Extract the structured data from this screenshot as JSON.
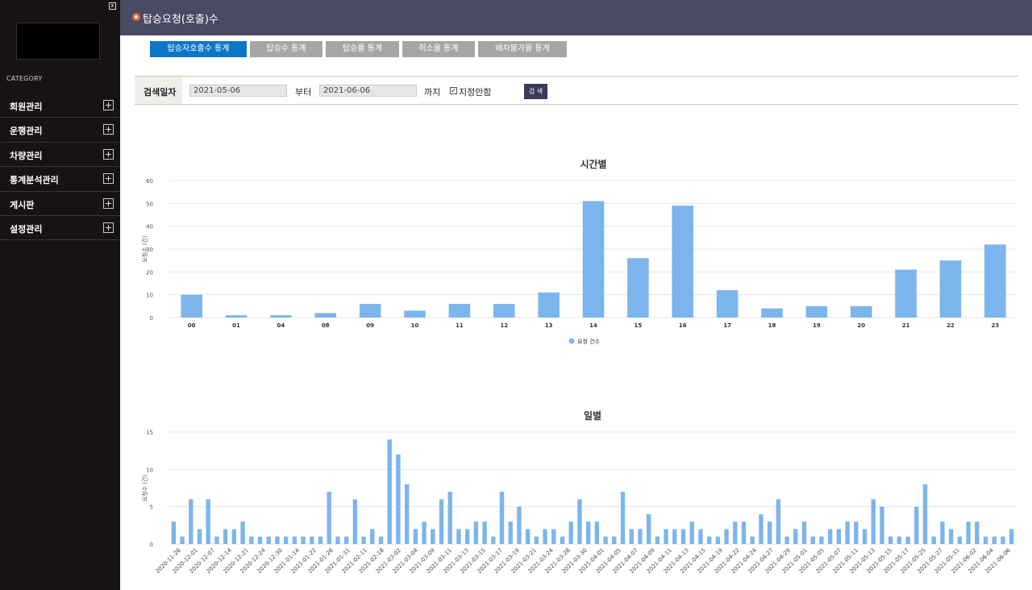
{
  "sidebar": {
    "category": "CATEGORY",
    "items": [
      {
        "label": "회원관리"
      },
      {
        "label": "운행관리"
      },
      {
        "label": "차량관리"
      },
      {
        "label": "통계분석관리"
      },
      {
        "label": "게시판"
      },
      {
        "label": "설정관리"
      }
    ]
  },
  "header": {
    "title": "탑승요청(호출)수"
  },
  "tabs": [
    {
      "label": "탑승자호출수 통계"
    },
    {
      "label": "탑승수 통계"
    },
    {
      "label": "탑승률 통계"
    },
    {
      "label": "취소율 통계"
    },
    {
      "label": "배차불가율 통계"
    }
  ],
  "search": {
    "label": "검색일자",
    "from_date": "2021-05-06",
    "from_suffix": "부터",
    "to_date": "2021-06-06",
    "to_suffix": "까지",
    "unspecified_label": "지정안함",
    "unspecified_checked": true,
    "button_label": "검 색"
  },
  "colors": {
    "accent": "#0b76c8",
    "header_bg": "#4b4a63",
    "sidebar_bg": "#181313",
    "bar": "#7cb5ec"
  },
  "chart_data": [
    {
      "type": "bar",
      "title": "시간별",
      "ylabel": "요청수 (건)",
      "ylim": [
        0,
        60
      ],
      "yticks": [
        0,
        10,
        20,
        30,
        40,
        50,
        60
      ],
      "categories": [
        "00",
        "01",
        "04",
        "08",
        "09",
        "10",
        "11",
        "12",
        "13",
        "14",
        "15",
        "16",
        "17",
        "18",
        "19",
        "20",
        "21",
        "22",
        "23"
      ],
      "series": [
        {
          "name": "요청 건수",
          "values": [
            10,
            1,
            1,
            2,
            6,
            3,
            6,
            6,
            11,
            51,
            26,
            49,
            12,
            4,
            5,
            5,
            21,
            25,
            32
          ]
        }
      ],
      "legend": "bottom-center",
      "grid": true
    },
    {
      "type": "bar",
      "title": "일별",
      "ylabel": "요청수 (건)",
      "ylim": [
        0,
        15
      ],
      "yticks": [
        0,
        5,
        10,
        15
      ],
      "x_tick_labels": [
        "2020-11-26",
        "2020-12-01",
        "2020-12-07",
        "2020-12-14",
        "2020-12-21",
        "2020-12-24",
        "2020-12-30",
        "2021-01-14",
        "2021-01-22",
        "2021-01-26",
        "2021-01-31",
        "2021-02-11",
        "2021-02-18",
        "2021-03-02",
        "2021-03-04",
        "2021-03-09",
        "2021-03-11",
        "2021-03-13",
        "2021-03-15",
        "2021-03-17",
        "2021-03-19",
        "2021-03-21",
        "2021-03-24",
        "2021-03-28",
        "2021-03-30",
        "2021-04-01",
        "2021-04-05",
        "2021-04-07",
        "2021-04-09",
        "2021-04-11",
        "2021-04-13",
        "2021-04-15",
        "2021-04-19",
        "2021-04-22",
        "2021-04-24",
        "2021-04-27",
        "2021-04-29",
        "2021-05-01",
        "2021-05-05",
        "2021-05-07",
        "2021-05-11",
        "2021-05-13",
        "2021-05-15",
        "2021-05-17",
        "2021-05-25",
        "2021-05-27",
        "2021-05-31",
        "2021-06-02",
        "2021-06-04",
        "2021-06-06"
      ],
      "series": [
        {
          "name": "요청 건수",
          "values": [
            3,
            1,
            6,
            2,
            6,
            1,
            2,
            2,
            3,
            1,
            1,
            1,
            1,
            1,
            1,
            1,
            1,
            1,
            7,
            1,
            1,
            6,
            1,
            2,
            1,
            14,
            12,
            8,
            2,
            3,
            2,
            6,
            7,
            2,
            2,
            3,
            3,
            1,
            7,
            3,
            5,
            2,
            1,
            2,
            2,
            1,
            3,
            6,
            3,
            3,
            1,
            1,
            7,
            2,
            2,
            4,
            1,
            2,
            2,
            2,
            3,
            2,
            1,
            1,
            2,
            3,
            3,
            1,
            4,
            3,
            6,
            1,
            2,
            3,
            1,
            1,
            2,
            2,
            3,
            3,
            2,
            6,
            5,
            1,
            1,
            1,
            5,
            8,
            1,
            3,
            2,
            1,
            3,
            3,
            1,
            1,
            1,
            2
          ]
        }
      ],
      "grid": true
    }
  ]
}
